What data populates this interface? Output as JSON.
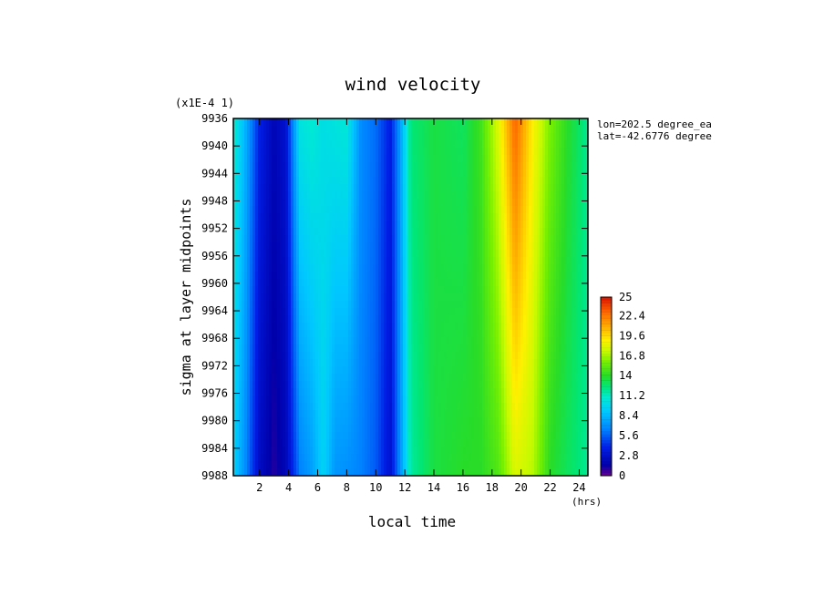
{
  "chart_data": {
    "type": "heatmap",
    "title": "wind velocity",
    "scale_note": "(x1E-4 1)",
    "xlabel": "local time",
    "x_unit": "(hrs)",
    "ylabel": "sigma at layer midpoints",
    "annotations": [
      "lon=202.5 degree_ea",
      "lat=-42.6776 degree"
    ],
    "xlim": [
      0.2,
      24.6
    ],
    "ylim": [
      9936,
      9988
    ],
    "x_ticks": [
      2,
      4,
      6,
      8,
      10,
      12,
      14,
      16,
      18,
      20,
      22,
      24
    ],
    "y_ticks": [
      9936,
      9940,
      9944,
      9948,
      9952,
      9956,
      9960,
      9964,
      9968,
      9972,
      9976,
      9980,
      9984,
      9988
    ],
    "x_tick_labels": [
      "2",
      "4",
      "6",
      "8",
      "10",
      "12",
      "14",
      "16",
      "18",
      "20",
      "22",
      "24"
    ],
    "y_tick_labels": [
      "9936",
      "9940",
      "9944",
      "9948",
      "9952",
      "9956",
      "9960",
      "9964",
      "9968",
      "9972",
      "9976",
      "9980",
      "9984",
      "9988"
    ],
    "colorbar": {
      "min": 0,
      "max": 25,
      "labels": [
        "25",
        "22.4",
        "19.6",
        "16.8",
        "14",
        "11.2",
        "8.4",
        "5.6",
        "2.8",
        "0"
      ],
      "label_values": [
        25,
        22.4,
        19.6,
        16.8,
        14,
        11.2,
        8.4,
        5.6,
        2.8,
        0
      ]
    },
    "x_hours": [
      0.2,
      1.0,
      2.0,
      3.0,
      3.8,
      4.8,
      5.6,
      6.4,
      7.2,
      8.0,
      9.0,
      10.0,
      11.0,
      11.6,
      12.4,
      14.0,
      16.0,
      17.2,
      18.4,
      19.6,
      20.8,
      22.0,
      23.2,
      24.6
    ],
    "z_top": [
      11.2,
      8.4,
      4.0,
      2.0,
      3.0,
      10.5,
      11.0,
      10.2,
      10.6,
      10.8,
      6.8,
      6.0,
      3.8,
      7.0,
      12.5,
      13.5,
      13.0,
      14.5,
      18.0,
      23.0,
      19.0,
      16.0,
      14.0,
      12.0
    ],
    "z_bottom": [
      9.5,
      7.0,
      2.5,
      1.0,
      2.0,
      6.5,
      7.5,
      9.6,
      7.2,
      7.0,
      6.5,
      5.5,
      3.0,
      6.5,
      11.8,
      13.5,
      14.0,
      14.0,
      15.0,
      18.0,
      17.2,
      14.0,
      13.0,
      12.0
    ]
  }
}
